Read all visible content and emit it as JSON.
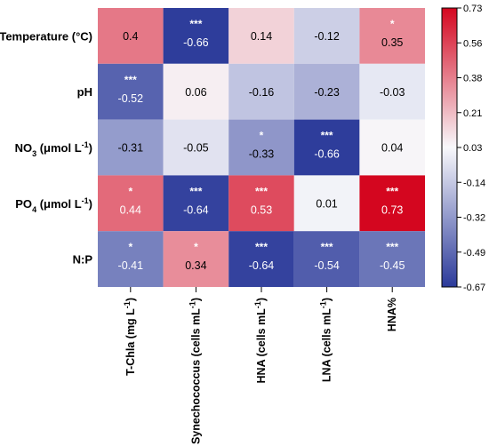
{
  "chart_data": {
    "type": "heatmap",
    "rows": [
      "Temperature (°C)",
      "pH",
      "NO3 (μmol L-1)",
      "PO4 (μmol L-1)",
      "N:P"
    ],
    "rows_rich": [
      [
        {
          "t": "Temperature (°C)"
        }
      ],
      [
        {
          "t": "pH"
        }
      ],
      [
        {
          "t": "NO"
        },
        {
          "t": "3",
          "s": "sub"
        },
        {
          "t": " (μmol L"
        },
        {
          "t": "-1",
          "s": "sup"
        },
        {
          "t": ")"
        }
      ],
      [
        {
          "t": "PO"
        },
        {
          "t": "4",
          "s": "sub"
        },
        {
          "t": " (μmol L"
        },
        {
          "t": "-1",
          "s": "sup"
        },
        {
          "t": ")"
        }
      ],
      [
        {
          "t": "N:P"
        }
      ]
    ],
    "columns": [
      "T-Chla (mg L-1)",
      "Synechococcus (cells mL-1)",
      "HNA (cells mL-1)",
      "LNA (cells mL-1)",
      "HNA%"
    ],
    "columns_rich": [
      [
        {
          "t": "T-Chla (mg L"
        },
        {
          "t": "-1",
          "s": "sup"
        },
        {
          "t": ")"
        }
      ],
      [
        {
          "t": "Synechococcus (cells mL"
        },
        {
          "t": "-1",
          "s": "sup"
        },
        {
          "t": ")"
        }
      ],
      [
        {
          "t": "HNA (cells mL"
        },
        {
          "t": "-1",
          "s": "sup"
        },
        {
          "t": ")"
        }
      ],
      [
        {
          "t": "LNA (cells mL"
        },
        {
          "t": "-1",
          "s": "sup"
        },
        {
          "t": ")"
        }
      ],
      [
        {
          "t": "HNA%"
        }
      ]
    ],
    "values": [
      [
        0.4,
        -0.66,
        0.14,
        -0.12,
        0.35
      ],
      [
        -0.52,
        0.06,
        -0.16,
        -0.23,
        -0.03
      ],
      [
        -0.31,
        -0.05,
        -0.33,
        -0.66,
        0.04
      ],
      [
        0.44,
        -0.64,
        0.53,
        0.01,
        0.73
      ],
      [
        -0.41,
        0.34,
        -0.64,
        -0.54,
        -0.45
      ]
    ],
    "labels": [
      [
        "0.4",
        "-0.66",
        "0.14",
        "-0.12",
        "0.35"
      ],
      [
        "-0.52",
        "0.06",
        "-0.16",
        "-0.23",
        "-0.03"
      ],
      [
        "-0.31",
        "-0.05",
        "-0.33",
        "-0.66",
        "0.04"
      ],
      [
        "0.44",
        "-0.64",
        "0.53",
        "0.01",
        "0.73"
      ],
      [
        "-0.41",
        "0.34",
        "-0.64",
        "-0.54",
        "-0.45"
      ]
    ],
    "significance": [
      [
        "",
        "***",
        "",
        "",
        "*"
      ],
      [
        "***",
        "",
        "",
        "",
        ""
      ],
      [
        "",
        "",
        "*",
        "***",
        ""
      ],
      [
        "*",
        "***",
        "***",
        "",
        "***"
      ],
      [
        "*",
        "*",
        "***",
        "***",
        "***"
      ]
    ],
    "colorbar": {
      "min": -0.67,
      "max": 0.73,
      "ticks": [
        "0.73",
        "0.56",
        "0.38",
        "0.21",
        "0.03",
        "-0.14",
        "-0.32",
        "-0.49",
        "-0.67"
      ],
      "colors": {
        "negative": "#2b3a9a",
        "neutral": "#f8f8fb",
        "positive": "#d4061f"
      }
    },
    "grid": false,
    "legend": "right"
  }
}
